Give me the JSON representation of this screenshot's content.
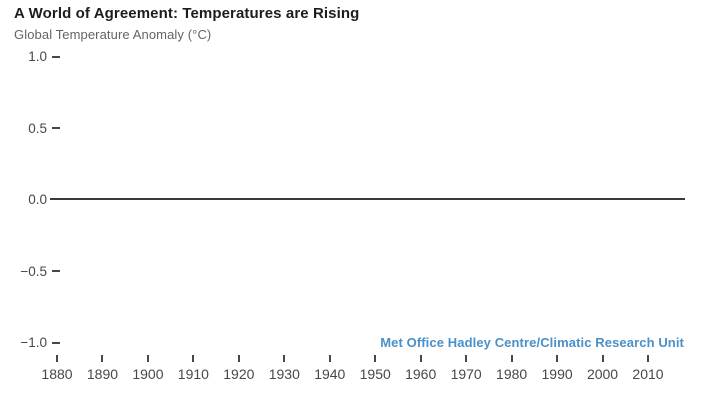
{
  "chart_data": {
    "type": "line",
    "title": "A World of Agreement: Temperatures are Rising",
    "ylabel": "Global Temperature Anomaly (°C)",
    "xlabel": "",
    "credit": "Met Office Hadley Centre/Climatic Research Unit",
    "x_tick_years": [
      1880,
      1890,
      1900,
      1910,
      1920,
      1930,
      1940,
      1950,
      1960,
      1970,
      1980,
      1990,
      2000,
      2010
    ],
    "y_ticks": [
      {
        "value": 1.0,
        "label": "1.0"
      },
      {
        "value": 0.5,
        "label": "0.5"
      },
      {
        "value": 0.0,
        "label": "0.0"
      },
      {
        "value": -0.5,
        "label": "−0.5"
      },
      {
        "value": -1.0,
        "label": "−1.0"
      }
    ],
    "ylim": [
      -1.0,
      1.0
    ],
    "xlim": [
      1878,
      2018
    ],
    "grid": false,
    "legend": "none",
    "series": [],
    "zero_baseline": {
      "value": 0.0,
      "drawn": true
    },
    "colors": {
      "title": "#1d1d1f",
      "subtitle": "#636466",
      "axis_text": "#48484a",
      "baseline": "#3a3a3c",
      "credit_blue": "#4a90c9",
      "background": "#ffffff"
    }
  }
}
